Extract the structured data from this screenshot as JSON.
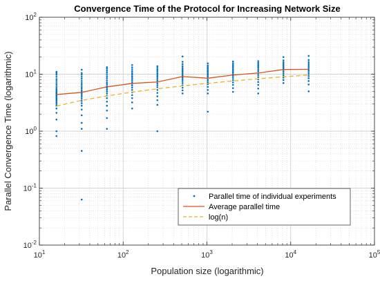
{
  "chart_data": {
    "type": "scatter",
    "title": "Convergence Time of the Protocol for Increasing Network Size",
    "xlabel": "Population size (logarithmic)",
    "ylabel": "Parallel Convergence Time (logarithmic)",
    "x_scale": "log",
    "y_scale": "log",
    "xlim": [
      10,
      100000
    ],
    "ylim": [
      0.01,
      100
    ],
    "x_ticks": [
      {
        "base": "10",
        "exp": "1",
        "value": 10
      },
      {
        "base": "10",
        "exp": "2",
        "value": 100
      },
      {
        "base": "10",
        "exp": "3",
        "value": 1000
      },
      {
        "base": "10",
        "exp": "4",
        "value": 10000
      },
      {
        "base": "10",
        "exp": "5",
        "value": 100000
      }
    ],
    "y_ticks": [
      {
        "base": "10",
        "exp": "-2",
        "value": 0.01
      },
      {
        "base": "10",
        "exp": "-1",
        "value": 0.1
      },
      {
        "base": "10",
        "exp": "0",
        "value": 1
      },
      {
        "base": "10",
        "exp": "1",
        "value": 10
      },
      {
        "base": "10",
        "exp": "2",
        "value": 100
      }
    ],
    "grid": true,
    "minor_grid": true,
    "legend_position": "bottom-right",
    "series": [
      {
        "name": "Parallel time of individual experiments",
        "kind": "points",
        "color": "#0072BD",
        "groups": [
          {
            "x": 16,
            "y": [
              0.82,
              1.0,
              1.6,
              2.1,
              2.5,
              2.8,
              3.0,
              3.2,
              3.4,
              3.6,
              3.8,
              4.0,
              4.2,
              4.4,
              4.6,
              4.8,
              5.0,
              5.3,
              5.6,
              6.0,
              6.5,
              7.0,
              7.6,
              8.2,
              9.0,
              9.8,
              10.5,
              11.0
            ]
          },
          {
            "x": 32,
            "y": [
              0.063,
              0.45,
              1.1,
              1.4,
              1.9,
              2.4,
              2.8,
              3.1,
              3.4,
              3.7,
              4.0,
              4.3,
              4.6,
              4.9,
              5.2,
              5.6,
              6.0,
              6.5,
              7.0,
              7.6,
              8.3,
              9.0,
              9.8,
              10.5,
              12.0
            ]
          },
          {
            "x": 64,
            "y": [
              1.1,
              1.7,
              2.3,
              2.8,
              3.3,
              3.8,
              4.2,
              4.6,
              5.0,
              5.4,
              5.8,
              6.2,
              6.7,
              7.2,
              7.8,
              8.5,
              9.2,
              10.0,
              10.8,
              11.6,
              12.5,
              13.3
            ]
          },
          {
            "x": 128,
            "y": [
              2.5,
              3.2,
              3.8,
              4.3,
              4.8,
              5.3,
              5.8,
              6.3,
              6.8,
              7.3,
              7.9,
              8.5,
              9.1,
              9.8,
              10.5,
              11.3,
              12.2,
              13.2,
              14.5
            ]
          },
          {
            "x": 256,
            "y": [
              1.0,
              2.9,
              3.5,
              4.1,
              4.7,
              5.3,
              5.9,
              6.4,
              6.9,
              7.4,
              7.9,
              8.5,
              9.1,
              9.7,
              10.4,
              11.2,
              12.0,
              12.9,
              13.8
            ]
          },
          {
            "x": 512,
            "y": [
              4.6,
              5.2,
              5.8,
              6.4,
              7.0,
              7.6,
              8.2,
              8.8,
              9.4,
              10.0,
              10.6,
              11.3,
              12.0,
              12.8,
              13.8,
              15.0,
              16.5,
              20.5
            ]
          },
          {
            "x": 1024,
            "y": [
              2.2,
              4.6,
              5.3,
              6.0,
              6.7,
              7.3,
              7.9,
              8.5,
              9.1,
              9.7,
              10.3,
              11.0,
              11.7,
              12.5,
              13.3,
              14.2,
              15.5
            ]
          },
          {
            "x": 2048,
            "y": [
              4.9,
              5.7,
              6.5,
              7.2,
              7.9,
              8.6,
              9.3,
              10.0,
              10.7,
              11.4,
              12.1,
              12.9,
              13.7,
              14.6,
              15.6,
              16.8
            ]
          },
          {
            "x": 4096,
            "y": [
              4.6,
              5.6,
              6.5,
              7.3,
              8.1,
              8.9,
              9.7,
              10.5,
              11.3,
              12.1,
              13.0,
              13.9,
              14.8,
              15.8,
              17.0
            ]
          },
          {
            "x": 8192,
            "y": [
              7.0,
              7.9,
              8.7,
              9.5,
              10.3,
              11.1,
              11.9,
              12.7,
              13.5,
              14.3,
              15.2,
              16.2,
              17.5,
              20.0
            ]
          },
          {
            "x": 16384,
            "y": [
              5.0,
              6.6,
              7.6,
              8.5,
              9.3,
              10.1,
              10.9,
              11.7,
              12.5,
              13.4,
              14.3,
              15.3,
              16.4,
              17.8,
              21.0
            ]
          }
        ]
      },
      {
        "name": "Average parallel time",
        "kind": "line",
        "color": "#D95319",
        "x": [
          16,
          32,
          64,
          128,
          256,
          512,
          1024,
          2048,
          4096,
          8192,
          16384
        ],
        "y": [
          4.4,
          4.8,
          6.0,
          6.9,
          7.3,
          9.1,
          8.5,
          9.7,
          10.5,
          12.1,
          12.2
        ]
      },
      {
        "name": "log(n)",
        "kind": "dashed",
        "color": "#EDB120",
        "x": [
          16,
          32,
          64,
          128,
          256,
          512,
          1024,
          2048,
          4096,
          8192,
          16384
        ],
        "y": [
          2.77,
          3.47,
          4.16,
          4.85,
          5.55,
          6.24,
          6.93,
          7.62,
          8.32,
          9.01,
          9.7
        ]
      }
    ]
  }
}
